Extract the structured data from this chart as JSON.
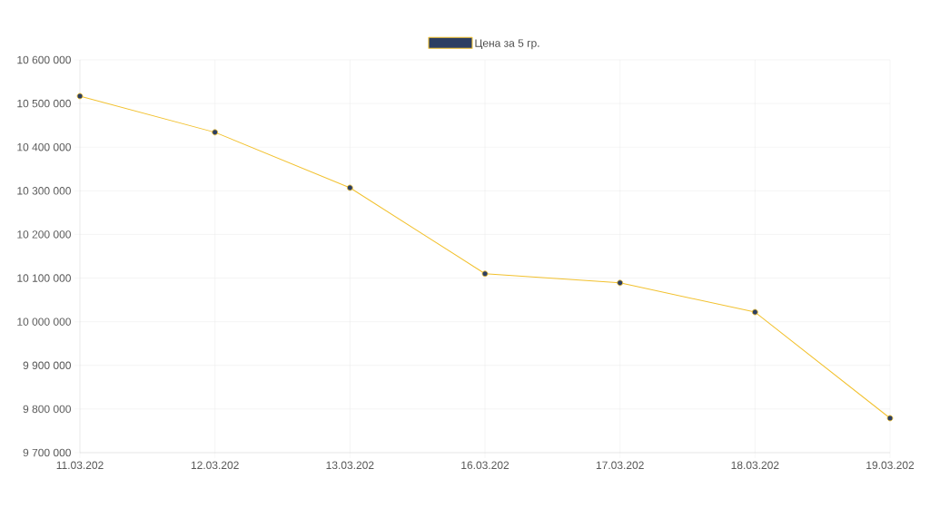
{
  "chart_data": {
    "type": "line",
    "categories": [
      "11.03.202",
      "12.03.202",
      "13.03.202",
      "16.03.202",
      "17.03.202",
      "18.03.202",
      "19.03.202"
    ],
    "series": [
      {
        "name": "Цена за 5 гр.",
        "color": "#f2c12e",
        "values": [
          10517000,
          10434000,
          10307000,
          10110000,
          10089000,
          10022000,
          9779000
        ]
      }
    ],
    "ylim": [
      9700000,
      10600000
    ],
    "yticks": [
      {
        "value": 9700000,
        "label": "9 700 000"
      },
      {
        "value": 9800000,
        "label": "9 800 000"
      },
      {
        "value": 9900000,
        "label": "9 900 000"
      },
      {
        "value": 10000000,
        "label": "10 000 000"
      },
      {
        "value": 10100000,
        "label": "10 100 000"
      },
      {
        "value": 10200000,
        "label": "10 200 000"
      },
      {
        "value": 10300000,
        "label": "10 300 000"
      },
      {
        "value": 10400000,
        "label": "10 400 000"
      },
      {
        "value": 10500000,
        "label": "10 500 000"
      },
      {
        "value": 10600000,
        "label": "10 600 000"
      }
    ],
    "grid": true,
    "legend": "top",
    "marker": "circle",
    "line_style": "solid"
  }
}
